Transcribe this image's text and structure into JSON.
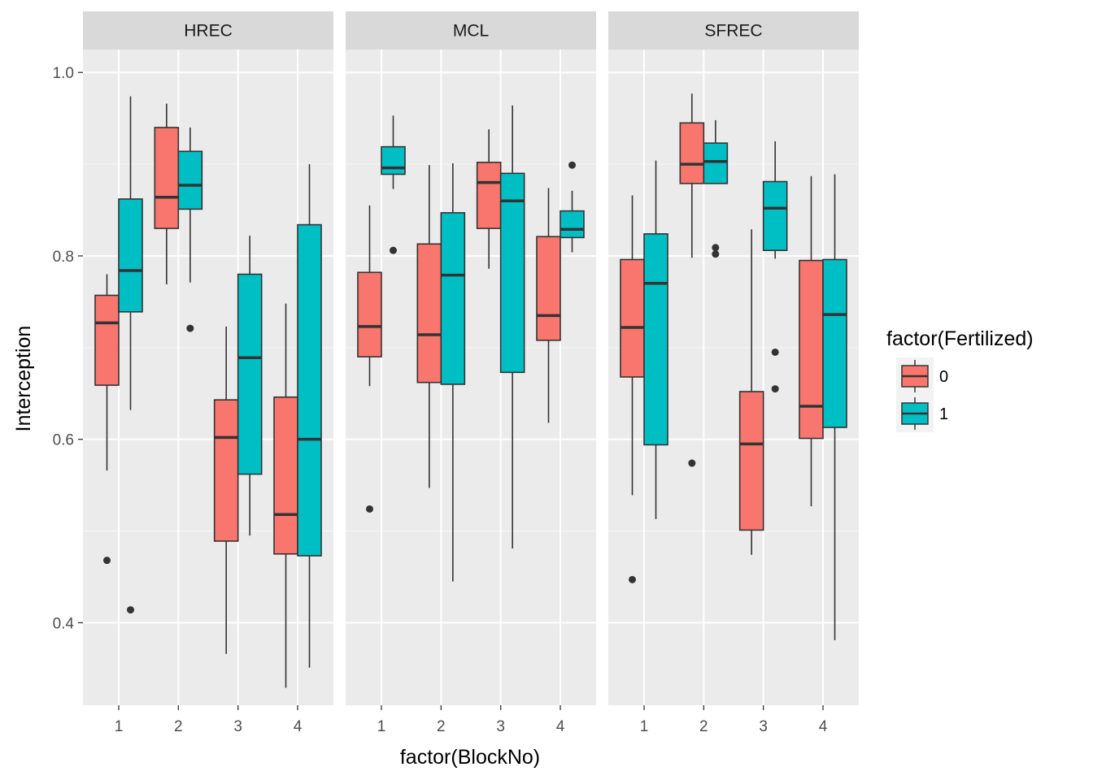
{
  "chart_data": {
    "type": "boxplot",
    "facets": [
      "HREC",
      "MCL",
      "SFREC"
    ],
    "categories": [
      "1",
      "2",
      "3",
      "4"
    ],
    "xlabel": "factor(BlockNo)",
    "ylabel": "Interception",
    "ylim": [
      0.31,
      1.025
    ],
    "yticks": [
      0.4,
      0.6,
      0.8,
      1.0
    ],
    "ytick_labels": [
      "0.4",
      "0.6",
      "0.8",
      "1.0"
    ],
    "grid": true,
    "legend": {
      "title": "factor(Fertilized)",
      "position": "right",
      "entries": [
        {
          "label": "0",
          "color": "#F8766D"
        },
        {
          "label": "1",
          "color": "#00BFC4"
        }
      ]
    },
    "colors": {
      "0": "#F8766D",
      "1": "#00BFC4"
    },
    "boxes": [
      {
        "facet": "HREC",
        "block": "1",
        "group": "0",
        "lower_whisker": 0.566,
        "q1": 0.659,
        "median": 0.727,
        "q3": 0.757,
        "upper_whisker": 0.78,
        "outliers": [
          0.468
        ]
      },
      {
        "facet": "HREC",
        "block": "1",
        "group": "1",
        "lower_whisker": 0.632,
        "q1": 0.739,
        "median": 0.784,
        "q3": 0.862,
        "upper_whisker": 0.974,
        "outliers": [
          0.414
        ]
      },
      {
        "facet": "HREC",
        "block": "2",
        "group": "0",
        "lower_whisker": 0.769,
        "q1": 0.83,
        "median": 0.864,
        "q3": 0.94,
        "upper_whisker": 0.966,
        "outliers": []
      },
      {
        "facet": "HREC",
        "block": "2",
        "group": "1",
        "lower_whisker": 0.771,
        "q1": 0.851,
        "median": 0.877,
        "q3": 0.914,
        "upper_whisker": 0.94,
        "outliers": [
          0.721
        ]
      },
      {
        "facet": "HREC",
        "block": "3",
        "group": "0",
        "lower_whisker": 0.366,
        "q1": 0.489,
        "median": 0.602,
        "q3": 0.643,
        "upper_whisker": 0.723,
        "outliers": []
      },
      {
        "facet": "HREC",
        "block": "3",
        "group": "1",
        "lower_whisker": 0.495,
        "q1": 0.562,
        "median": 0.689,
        "q3": 0.78,
        "upper_whisker": 0.822,
        "outliers": []
      },
      {
        "facet": "HREC",
        "block": "4",
        "group": "0",
        "lower_whisker": 0.329,
        "q1": 0.475,
        "median": 0.518,
        "q3": 0.646,
        "upper_whisker": 0.748,
        "outliers": []
      },
      {
        "facet": "HREC",
        "block": "4",
        "group": "1",
        "lower_whisker": 0.351,
        "q1": 0.473,
        "median": 0.6,
        "q3": 0.834,
        "upper_whisker": 0.9,
        "outliers": []
      },
      {
        "facet": "MCL",
        "block": "1",
        "group": "0",
        "lower_whisker": 0.658,
        "q1": 0.69,
        "median": 0.723,
        "q3": 0.782,
        "upper_whisker": 0.855,
        "outliers": [
          0.524
        ]
      },
      {
        "facet": "MCL",
        "block": "1",
        "group": "1",
        "lower_whisker": 0.873,
        "q1": 0.889,
        "median": 0.896,
        "q3": 0.919,
        "upper_whisker": 0.953,
        "outliers": [
          0.806
        ]
      },
      {
        "facet": "MCL",
        "block": "2",
        "group": "0",
        "lower_whisker": 0.547,
        "q1": 0.662,
        "median": 0.714,
        "q3": 0.813,
        "upper_whisker": 0.899,
        "outliers": []
      },
      {
        "facet": "MCL",
        "block": "2",
        "group": "1",
        "lower_whisker": 0.445,
        "q1": 0.66,
        "median": 0.779,
        "q3": 0.847,
        "upper_whisker": 0.901,
        "outliers": []
      },
      {
        "facet": "MCL",
        "block": "3",
        "group": "0",
        "lower_whisker": 0.786,
        "q1": 0.83,
        "median": 0.88,
        "q3": 0.902,
        "upper_whisker": 0.938,
        "outliers": []
      },
      {
        "facet": "MCL",
        "block": "3",
        "group": "1",
        "lower_whisker": 0.481,
        "q1": 0.673,
        "median": 0.86,
        "q3": 0.89,
        "upper_whisker": 0.964,
        "outliers": []
      },
      {
        "facet": "MCL",
        "block": "4",
        "group": "0",
        "lower_whisker": 0.618,
        "q1": 0.708,
        "median": 0.735,
        "q3": 0.821,
        "upper_whisker": 0.874,
        "outliers": []
      },
      {
        "facet": "MCL",
        "block": "4",
        "group": "1",
        "lower_whisker": 0.804,
        "q1": 0.82,
        "median": 0.829,
        "q3": 0.849,
        "upper_whisker": 0.871,
        "outliers": [
          0.899
        ]
      },
      {
        "facet": "SFREC",
        "block": "1",
        "group": "0",
        "lower_whisker": 0.539,
        "q1": 0.668,
        "median": 0.722,
        "q3": 0.796,
        "upper_whisker": 0.866,
        "outliers": [
          0.447
        ]
      },
      {
        "facet": "SFREC",
        "block": "1",
        "group": "1",
        "lower_whisker": 0.513,
        "q1": 0.594,
        "median": 0.77,
        "q3": 0.824,
        "upper_whisker": 0.904,
        "outliers": []
      },
      {
        "facet": "SFREC",
        "block": "2",
        "group": "0",
        "lower_whisker": 0.798,
        "q1": 0.879,
        "median": 0.9,
        "q3": 0.945,
        "upper_whisker": 0.977,
        "outliers": [
          0.574
        ]
      },
      {
        "facet": "SFREC",
        "block": "2",
        "group": "1",
        "lower_whisker": 0.879,
        "q1": 0.879,
        "median": 0.903,
        "q3": 0.923,
        "upper_whisker": 0.948,
        "outliers": [
          0.809,
          0.802
        ]
      },
      {
        "facet": "SFREC",
        "block": "3",
        "group": "0",
        "lower_whisker": 0.474,
        "q1": 0.501,
        "median": 0.595,
        "q3": 0.652,
        "upper_whisker": 0.829,
        "outliers": []
      },
      {
        "facet": "SFREC",
        "block": "3",
        "group": "1",
        "lower_whisker": 0.797,
        "q1": 0.806,
        "median": 0.852,
        "q3": 0.881,
        "upper_whisker": 0.925,
        "outliers": [
          0.695,
          0.655
        ]
      },
      {
        "facet": "SFREC",
        "block": "4",
        "group": "0",
        "lower_whisker": 0.527,
        "q1": 0.601,
        "median": 0.636,
        "q3": 0.795,
        "upper_whisker": 0.887,
        "outliers": []
      },
      {
        "facet": "SFREC",
        "block": "4",
        "group": "1",
        "lower_whisker": 0.381,
        "q1": 0.613,
        "median": 0.736,
        "q3": 0.796,
        "upper_whisker": 0.889,
        "outliers": []
      }
    ]
  }
}
